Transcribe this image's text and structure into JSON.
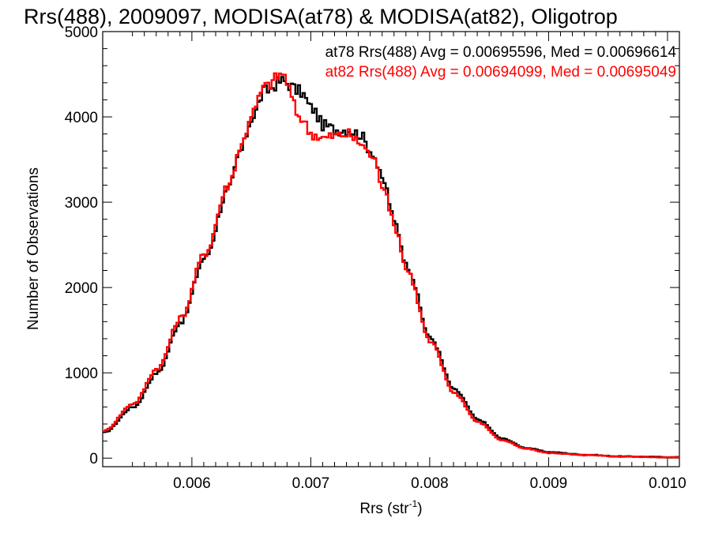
{
  "chart_data": {
    "type": "histogram",
    "title": "Rrs(488), 2009097, MODISA(at78) & MODISA(at82), Oligotrop",
    "xlabel": "Rrs (str",
    "xlabel_sup": "-1",
    "xlabel_end": ")",
    "ylabel": "Number of Observations",
    "xlim": [
      0.00525,
      0.0101
    ],
    "ylim": [
      -100,
      5000
    ],
    "x_ticks": [
      0.006,
      0.007,
      0.008,
      0.009,
      0.01
    ],
    "x_tick_labels": [
      "0.006",
      "0.007",
      "0.008",
      "0.009",
      "0.010"
    ],
    "y_ticks": [
      0,
      1000,
      2000,
      3000,
      4000,
      5000
    ],
    "y_tick_labels": [
      "0",
      "1000",
      "2000",
      "3000",
      "4000",
      "5000"
    ],
    "series": [
      {
        "name": "at78 Rrs(488) Avg = 0.00695596, Med = 0.00696614",
        "color": "#000000",
        "x": [
          0.00525,
          0.0055,
          0.0057,
          0.0059,
          0.0061,
          0.0063,
          0.0064,
          0.0065,
          0.0066,
          0.00675,
          0.0069,
          0.007,
          0.0071,
          0.0072,
          0.0073,
          0.0074,
          0.0075,
          0.0076,
          0.0077,
          0.0078,
          0.008,
          0.0082,
          0.0084,
          0.0086,
          0.0088,
          0.009,
          0.0093,
          0.0096,
          0.0101
        ],
        "values": [
          300,
          600,
          1000,
          1600,
          2350,
          3150,
          3600,
          4000,
          4300,
          4420,
          4300,
          4100,
          3900,
          3850,
          3850,
          3800,
          3600,
          3250,
          2750,
          2250,
          1400,
          800,
          450,
          230,
          120,
          70,
          40,
          20,
          10
        ]
      },
      {
        "name": "at82 Rrs(488) Avg = 0.00694099, Med = 0.00695049",
        "color": "#ff0000",
        "x": [
          0.00525,
          0.0055,
          0.0057,
          0.0059,
          0.0061,
          0.0063,
          0.0064,
          0.0065,
          0.0066,
          0.00675,
          0.0069,
          0.007,
          0.0071,
          0.0072,
          0.0073,
          0.0074,
          0.0075,
          0.0076,
          0.0077,
          0.0078,
          0.008,
          0.0082,
          0.0084,
          0.0086,
          0.0088,
          0.009,
          0.0093,
          0.0096,
          0.0101
        ],
        "values": [
          320,
          640,
          1050,
          1650,
          2400,
          3200,
          3650,
          4050,
          4350,
          4500,
          4000,
          3800,
          3750,
          3780,
          3800,
          3700,
          3550,
          3200,
          2700,
          2200,
          1350,
          760,
          420,
          210,
          110,
          60,
          35,
          18,
          8
        ]
      }
    ]
  }
}
